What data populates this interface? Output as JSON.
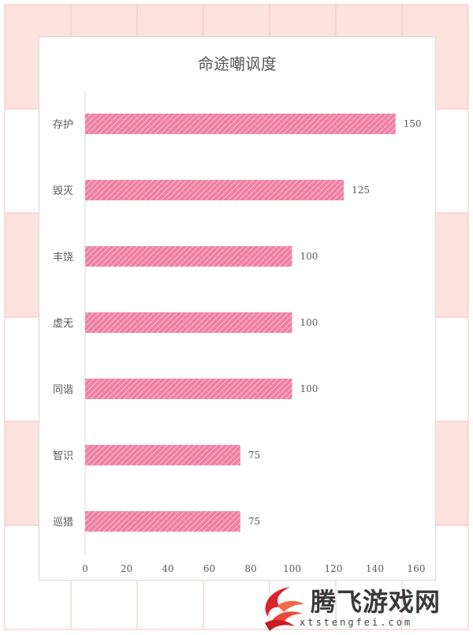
{
  "colors": {
    "bar": "#f07fa3",
    "bar_hatch": "#fbd5e2",
    "grid_line": "#f6c3b8",
    "grid_fill": "#fde2dd",
    "text": "#595959",
    "axis": "#d9d9d9"
  },
  "chart_data": {
    "type": "bar",
    "orientation": "horizontal",
    "title": "命途嘲讽度",
    "categories": [
      "存护",
      "毁灭",
      "丰饶",
      "虚无",
      "同谐",
      "智识",
      "巡猎"
    ],
    "values": [
      150,
      125,
      100,
      100,
      100,
      75,
      75
    ],
    "xlim": [
      0,
      160
    ],
    "xticks": [
      0,
      20,
      40,
      60,
      80,
      100,
      120,
      140,
      160
    ],
    "data_labels": true,
    "grid": false,
    "legend": "none"
  },
  "watermark": {
    "text": "腾飞游戏网",
    "url": "xtstengfei.com"
  }
}
